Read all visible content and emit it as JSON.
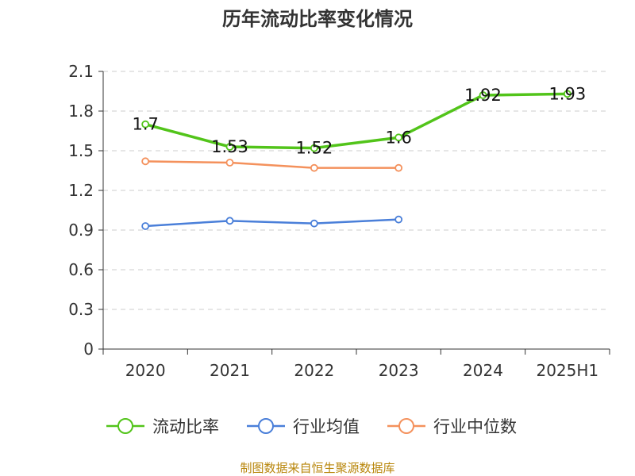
{
  "chart_data": {
    "type": "line",
    "title": "历年流动比率变化情况",
    "categories": [
      "2020",
      "2021",
      "2022",
      "2023",
      "2024",
      "2025H1"
    ],
    "ylim": [
      0,
      2.1
    ],
    "yticks": [
      "0",
      "0.3",
      "0.6",
      "0.9",
      "1.2",
      "1.5",
      "1.8",
      "2.1"
    ],
    "grid": true,
    "legend_position": "bottom",
    "series": [
      {
        "name": "流动比率",
        "color": "#52c41a",
        "values": [
          1.7,
          1.53,
          1.52,
          1.6,
          1.92,
          1.93
        ],
        "labels": [
          "1.7",
          "1.53",
          "1.52",
          "1.6",
          "1.92",
          "1.93"
        ],
        "show_labels": true
      },
      {
        "name": "行业均值",
        "color": "#4a7fd9",
        "values": [
          0.93,
          0.97,
          0.95,
          0.98,
          null,
          null
        ],
        "show_labels": false
      },
      {
        "name": "行业中位数",
        "color": "#f4915c",
        "values": [
          1.42,
          1.41,
          1.37,
          1.37,
          null,
          null
        ],
        "show_labels": false
      }
    ]
  },
  "source": "制图数据来自恒生聚源数据库"
}
